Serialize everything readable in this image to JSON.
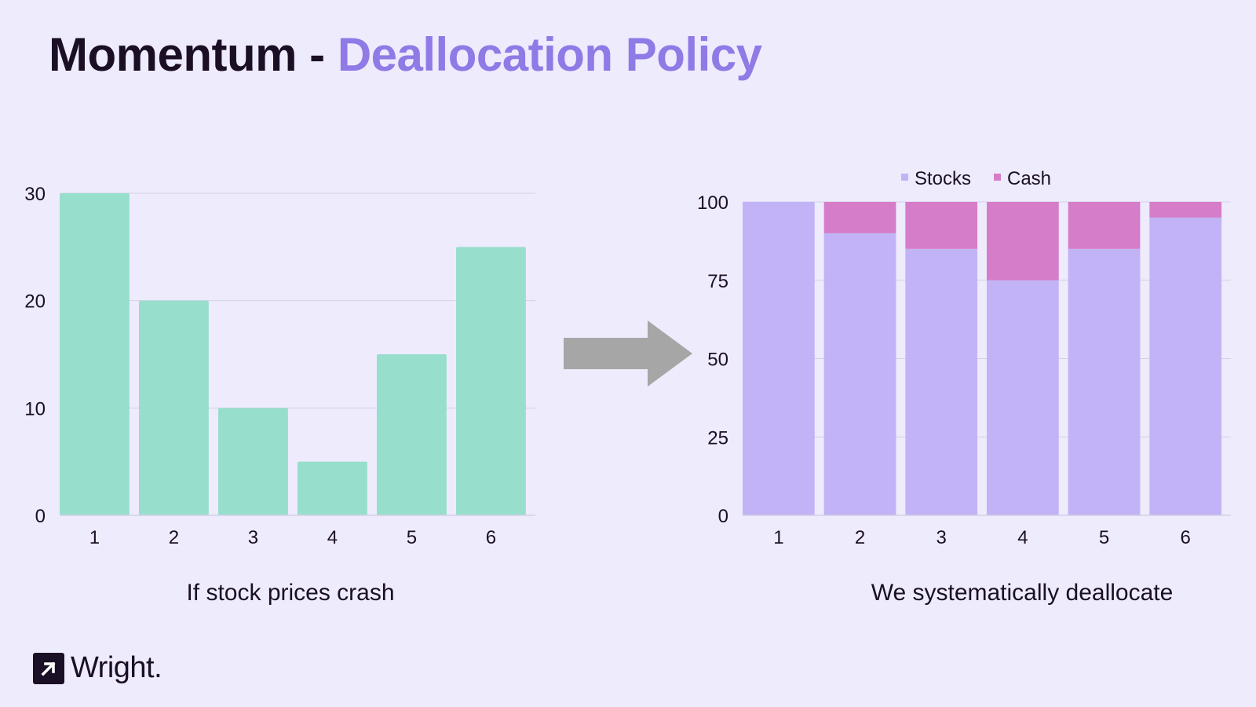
{
  "title": {
    "main": "Momentum - ",
    "accent": "Deallocation Policy"
  },
  "colors": {
    "background": "#EEEBFD",
    "title_dark": "#1A0F24",
    "title_accent": "#8F7AE6",
    "bars_left": "#98DECC",
    "stocks": "#C2B3F6",
    "cash": "#D67DC9",
    "arrow": "#A6A6A6",
    "grid": "#D3D0E6"
  },
  "chart_data": [
    {
      "type": "bar",
      "categories": [
        "1",
        "2",
        "3",
        "4",
        "5",
        "6"
      ],
      "values": [
        30,
        20,
        10,
        5,
        15,
        25
      ],
      "yticks": [
        "0",
        "10",
        "20",
        "30"
      ],
      "ylim": [
        0,
        30
      ],
      "grid": true,
      "caption": "If stock prices crash"
    },
    {
      "type": "bar",
      "stacked": true,
      "categories": [
        "1",
        "2",
        "3",
        "4",
        "5",
        "6"
      ],
      "series": [
        {
          "name": "Stocks",
          "values": [
            100,
            90,
            85,
            75,
            85,
            95
          ]
        },
        {
          "name": "Cash",
          "values": [
            0,
            10,
            15,
            25,
            15,
            5
          ]
        }
      ],
      "yticks": [
        "0",
        "25",
        "50",
        "75",
        "100"
      ],
      "ylim": [
        0,
        100
      ],
      "grid": true,
      "legend": "top-center",
      "caption": "We systematically deallocate"
    }
  ],
  "arrow_icon": "right-arrow-icon",
  "brand": {
    "name": "Wright.",
    "icon": "arrow-up-right-icon"
  }
}
